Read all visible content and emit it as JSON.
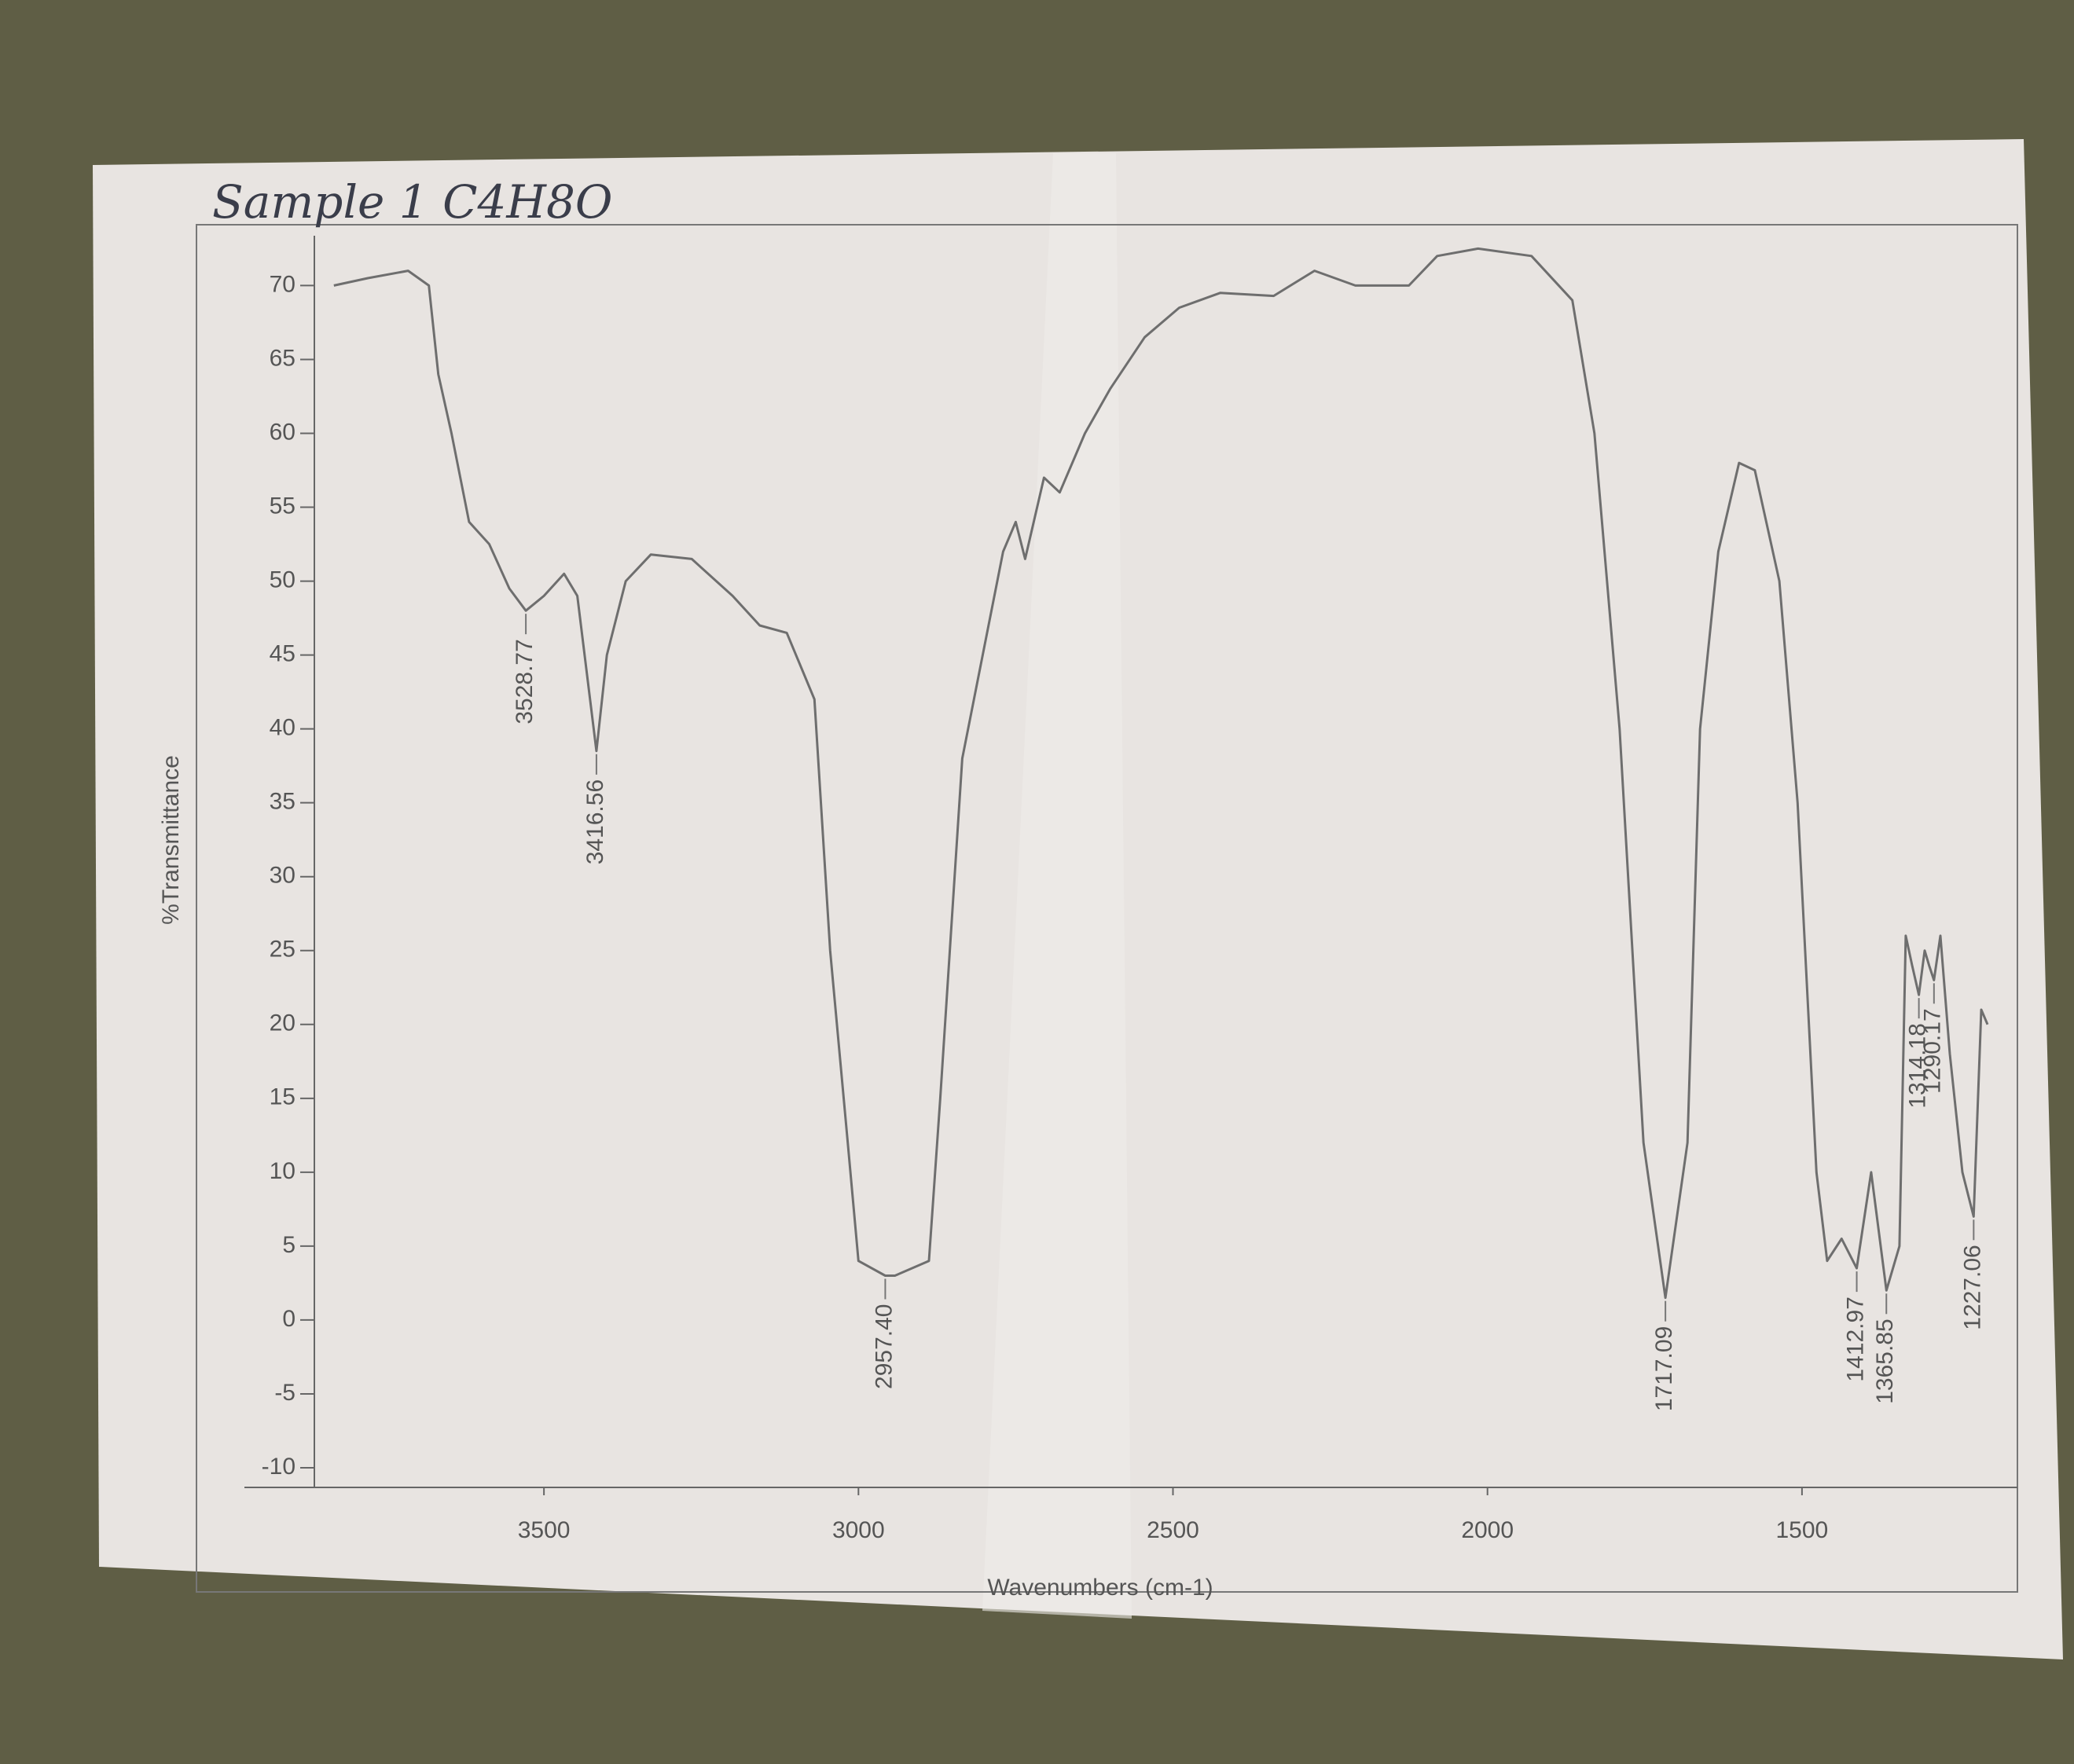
{
  "chart_data": {
    "type": "line",
    "title": "Sample 1 C4H8O",
    "xlabel": "Wavenumbers (cm-1)",
    "ylabel": "%Transmittance",
    "color": "#6e6e6e",
    "xlim": [
      3850,
      1200
    ],
    "xticks": [
      3500,
      3000,
      2500,
      2000,
      1500
    ],
    "ylim": [
      -10,
      73
    ],
    "yticks": [
      -10,
      -5,
      0,
      5,
      10,
      15,
      20,
      25,
      30,
      35,
      40,
      45,
      50,
      55,
      60,
      65,
      70
    ],
    "x": [
      3834,
      3780,
      3716,
      3683,
      3668,
      3647,
      3619,
      3587,
      3555,
      3528.77,
      3500,
      3468,
      3447,
      3416.56,
      3400,
      3370,
      3330,
      3265,
      3200,
      3157,
      3114,
      3070,
      3045,
      3017,
      3000,
      2957.4,
      2942,
      2888,
      2870,
      2835,
      2770,
      2750,
      2735,
      2705,
      2680,
      2640,
      2600,
      2545,
      2490,
      2425,
      2340,
      2275,
      2210,
      2125,
      2080,
      2015,
      1930,
      1865,
      1830,
      1790,
      1752,
      1717.09,
      1682,
      1662,
      1633,
      1600,
      1575,
      1536,
      1507,
      1477,
      1460,
      1437,
      1412.97,
      1390,
      1365.85,
      1345,
      1335,
      1325,
      1314.18,
      1305,
      1298,
      1290.17,
      1280,
      1265,
      1245,
      1227.06,
      1215,
      1205
    ],
    "values": [
      70,
      70.5,
      71,
      70,
      64,
      60,
      54,
      52.5,
      49.5,
      48,
      49,
      50.5,
      49,
      38.5,
      45,
      50,
      51.8,
      51.5,
      49,
      47,
      46.5,
      42,
      25,
      12,
      4,
      3,
      3,
      4,
      15,
      38,
      52,
      54,
      51.5,
      57,
      56,
      60,
      63,
      66.5,
      68.5,
      69.5,
      69.3,
      71,
      70,
      70,
      72,
      72.5,
      72,
      69,
      60,
      40,
      12,
      1.5,
      12,
      40,
      52,
      58,
      57.5,
      50,
      35,
      10,
      4,
      5.5,
      3.5,
      10,
      2,
      5,
      26,
      24,
      22,
      25,
      24,
      23,
      26,
      18,
      10,
      7,
      21,
      20
    ],
    "peaks": [
      {
        "x": 3528.77,
        "label": "3528.77"
      },
      {
        "x": 3416.56,
        "label": "3416.56"
      },
      {
        "x": 2957.4,
        "label": "2957.40"
      },
      {
        "x": 1717.09,
        "label": "1717.09"
      },
      {
        "x": 1412.97,
        "label": "1412.97"
      },
      {
        "x": 1365.85,
        "label": "1365.85"
      },
      {
        "x": 1314.18,
        "label": "1314.18"
      },
      {
        "x": 1290.17,
        "label": "1290.17"
      },
      {
        "x": 1227.06,
        "label": "1227.06"
      }
    ]
  }
}
